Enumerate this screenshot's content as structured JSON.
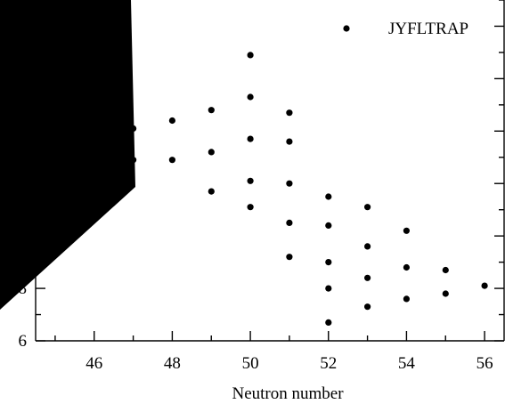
{
  "chart_data": {
    "type": "scatter",
    "xlabel": "Neutron number",
    "ylabel": "",
    "xlim": [
      44.5,
      56.5
    ],
    "ylim": [
      6,
      19
    ],
    "x_ticks": [
      46,
      48,
      50,
      52,
      54,
      56
    ],
    "y_ticks_visible": [
      6,
      8
    ],
    "grid": false,
    "legend": {
      "position": "top-right"
    },
    "series": [
      {
        "name": "JYFLTRAP",
        "points": [
          {
            "x": 47,
            "y": 14.1
          },
          {
            "x": 47,
            "y": 12.9
          },
          {
            "x": 48,
            "y": 14.4
          },
          {
            "x": 48,
            "y": 12.9
          },
          {
            "x": 49,
            "y": 14.8
          },
          {
            "x": 49,
            "y": 13.2
          },
          {
            "x": 49,
            "y": 11.7
          },
          {
            "x": 50,
            "y": 16.9
          },
          {
            "x": 50,
            "y": 15.3
          },
          {
            "x": 50,
            "y": 13.7
          },
          {
            "x": 50,
            "y": 12.1
          },
          {
            "x": 50,
            "y": 11.1
          },
          {
            "x": 51,
            "y": 14.7
          },
          {
            "x": 51,
            "y": 13.6
          },
          {
            "x": 51,
            "y": 12.0
          },
          {
            "x": 51,
            "y": 10.5
          },
          {
            "x": 51,
            "y": 9.2
          },
          {
            "x": 52,
            "y": 11.5
          },
          {
            "x": 52,
            "y": 10.4
          },
          {
            "x": 52,
            "y": 9.0
          },
          {
            "x": 52,
            "y": 8.0
          },
          {
            "x": 52,
            "y": 6.7
          },
          {
            "x": 53,
            "y": 11.1
          },
          {
            "x": 53,
            "y": 9.6
          },
          {
            "x": 53,
            "y": 8.4
          },
          {
            "x": 53,
            "y": 7.3
          },
          {
            "x": 54,
            "y": 10.2
          },
          {
            "x": 54,
            "y": 8.8
          },
          {
            "x": 54,
            "y": 7.6
          },
          {
            "x": 55,
            "y": 8.7
          },
          {
            "x": 55,
            "y": 7.8
          },
          {
            "x": 56,
            "y": 8.1
          }
        ]
      }
    ]
  },
  "occluder": {
    "color": "#000000"
  }
}
